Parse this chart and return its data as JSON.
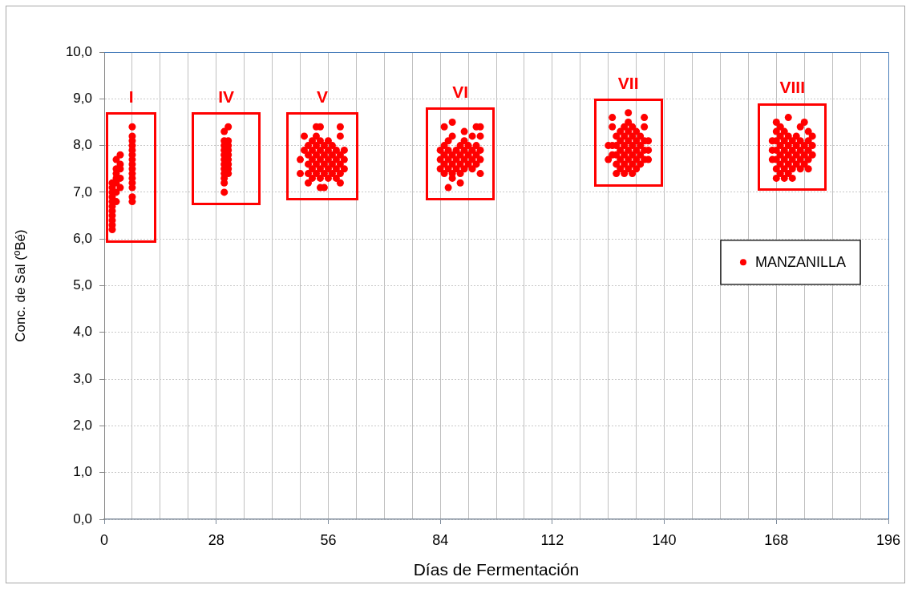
{
  "chart_data": {
    "type": "scatter",
    "xlabel": "Días de Fermentación",
    "ylabel": "Conc. de Sal (ºBé)",
    "xlim": [
      0,
      196
    ],
    "ylim": [
      0,
      10
    ],
    "xticks": [
      0,
      {
        "value": 7,
        "label": null
      },
      {
        "value": 14,
        "label": null
      },
      {
        "value": 21,
        "label": null
      },
      28,
      {
        "value": 35,
        "label": null
      },
      {
        "value": 42,
        "label": null
      },
      {
        "value": 49,
        "label": null
      },
      56,
      {
        "value": 63,
        "label": null
      },
      {
        "value": 70,
        "label": null
      },
      {
        "value": 77,
        "label": null
      },
      84,
      {
        "value": 91,
        "label": null
      },
      {
        "value": 98,
        "label": null
      },
      {
        "value": 105,
        "label": null
      },
      112,
      {
        "value": 119,
        "label": null
      },
      {
        "value": 126,
        "label": null
      },
      {
        "value": 133,
        "label": null
      },
      140,
      {
        "value": 147,
        "label": null
      },
      {
        "value": 154,
        "label": null
      },
      {
        "value": 161,
        "label": null
      },
      168,
      {
        "value": 175,
        "label": null
      },
      {
        "value": 182,
        "label": null
      },
      {
        "value": 189,
        "label": null
      },
      196
    ],
    "yticks": [
      {
        "value": 0,
        "label": "0,0"
      },
      {
        "value": 1,
        "label": "1,0"
      },
      {
        "value": 2,
        "label": "2,0"
      },
      {
        "value": 3,
        "label": "3,0"
      },
      {
        "value": 4,
        "label": "4,0"
      },
      {
        "value": 5,
        "label": "5,0"
      },
      {
        "value": 6,
        "label": "6,0"
      },
      {
        "value": 7,
        "label": "7,0"
      },
      {
        "value": 8,
        "label": "8,0"
      },
      {
        "value": 9,
        "label": "9,0"
      },
      {
        "value": 10,
        "label": "10,0"
      }
    ],
    "grid": true,
    "legend": "right",
    "marker": "circle",
    "annotations": [
      "I",
      "IV",
      "V",
      "VI",
      "VII",
      "VIII"
    ],
    "series": [
      {
        "name": "MANZANILLA",
        "color": "#ff0000",
        "x": [
          2,
          2,
          2,
          2,
          2,
          2,
          2,
          2,
          2,
          2,
          2,
          3,
          3,
          3,
          3,
          3,
          3,
          3,
          4,
          4,
          4,
          4,
          4,
          7,
          7,
          7,
          7,
          7,
          7,
          7,
          7,
          7,
          7,
          7,
          7,
          7,
          7,
          7,
          30,
          30,
          30,
          30,
          30,
          30,
          30,
          30,
          30,
          30,
          30,
          30,
          31,
          31,
          31,
          31,
          31,
          31,
          31,
          31,
          31,
          49,
          49,
          50,
          50,
          51,
          51,
          51,
          51,
          51,
          52,
          52,
          52,
          52,
          52,
          53,
          53,
          53,
          53,
          53,
          53,
          54,
          54,
          54,
          54,
          54,
          54,
          54,
          55,
          55,
          55,
          55,
          55,
          56,
          56,
          56,
          56,
          56,
          57,
          57,
          57,
          57,
          58,
          58,
          58,
          58,
          59,
          59,
          59,
          59,
          59,
          59,
          60,
          60,
          60,
          84,
          84,
          84,
          85,
          85,
          85,
          85,
          85,
          86,
          86,
          86,
          86,
          86,
          87,
          87,
          87,
          87,
          87,
          87,
          88,
          88,
          88,
          89,
          89,
          89,
          89,
          89,
          90,
          90,
          90,
          90,
          90,
          91,
          91,
          91,
          92,
          92,
          92,
          92,
          93,
          93,
          93,
          93,
          94,
          94,
          94,
          94,
          94,
          126,
          126,
          127,
          127,
          127,
          127,
          128,
          128,
          128,
          128,
          128,
          129,
          129,
          129,
          129,
          129,
          130,
          130,
          130,
          130,
          130,
          130,
          131,
          131,
          131,
          131,
          131,
          131,
          131,
          132,
          132,
          132,
          132,
          132,
          132,
          133,
          133,
          133,
          133,
          133,
          134,
          134,
          134,
          134,
          135,
          135,
          135,
          135,
          135,
          136,
          136,
          136,
          167,
          167,
          167,
          168,
          168,
          168,
          168,
          168,
          168,
          168,
          169,
          169,
          169,
          169,
          169,
          169,
          170,
          170,
          170,
          170,
          170,
          170,
          171,
          171,
          171,
          171,
          171,
          171,
          172,
          172,
          172,
          172,
          172,
          173,
          173,
          173,
          173,
          174,
          174,
          174,
          174,
          174,
          175,
          175,
          175,
          175,
          176,
          176,
          176,
          176,
          176,
          177,
          177,
          177
        ],
        "values": [
          6.2,
          6.3,
          6.4,
          6.5,
          6.6,
          6.7,
          6.8,
          6.9,
          7.0,
          7.1,
          7.2,
          6.8,
          7.0,
          7.2,
          7.3,
          7.4,
          7.5,
          7.7,
          7.1,
          7.3,
          7.5,
          7.6,
          7.8,
          6.8,
          6.9,
          7.1,
          7.2,
          7.3,
          7.4,
          7.5,
          7.6,
          7.7,
          7.8,
          7.9,
          8.0,
          8.1,
          8.2,
          8.4,
          7.0,
          7.2,
          7.3,
          7.4,
          7.5,
          7.6,
          7.7,
          7.8,
          7.9,
          8.0,
          8.1,
          8.3,
          7.4,
          7.5,
          7.6,
          7.7,
          7.8,
          7.9,
          8.0,
          8.1,
          8.4,
          7.4,
          7.7,
          7.9,
          8.2,
          7.2,
          7.4,
          7.6,
          7.8,
          8.0,
          7.3,
          7.5,
          7.7,
          7.9,
          8.1,
          7.4,
          7.6,
          7.8,
          8.0,
          8.2,
          8.4,
          7.1,
          7.3,
          7.5,
          7.7,
          7.9,
          8.1,
          8.4,
          7.1,
          7.4,
          7.6,
          7.8,
          8.0,
          7.3,
          7.5,
          7.7,
          7.9,
          8.1,
          7.4,
          7.6,
          7.8,
          8.0,
          7.3,
          7.5,
          7.7,
          7.9,
          7.2,
          7.4,
          7.6,
          7.8,
          8.2,
          8.4,
          7.5,
          7.7,
          7.9,
          7.5,
          7.7,
          7.9,
          7.4,
          7.6,
          7.8,
          8.0,
          8.4,
          7.1,
          7.5,
          7.7,
          7.9,
          8.1,
          7.3,
          7.4,
          7.6,
          7.8,
          8.2,
          8.5,
          7.5,
          7.7,
          7.9,
          7.2,
          7.4,
          7.6,
          7.8,
          8.0,
          7.5,
          7.7,
          7.9,
          8.1,
          8.3,
          7.6,
          7.8,
          8.0,
          7.5,
          7.7,
          7.9,
          8.2,
          7.6,
          7.8,
          8.0,
          8.4,
          7.4,
          7.7,
          7.9,
          8.2,
          8.4,
          7.7,
          8.0,
          7.8,
          8.0,
          8.4,
          8.6,
          7.4,
          7.6,
          7.8,
          8.0,
          8.2,
          7.5,
          7.7,
          7.9,
          8.1,
          8.3,
          7.4,
          7.6,
          7.8,
          8.0,
          8.2,
          8.4,
          7.5,
          7.7,
          7.9,
          8.1,
          8.3,
          8.5,
          8.7,
          7.4,
          7.6,
          7.8,
          8.0,
          8.2,
          8.4,
          7.5,
          7.7,
          7.9,
          8.1,
          8.3,
          7.6,
          7.8,
          8.0,
          8.2,
          7.7,
          7.9,
          8.1,
          8.4,
          8.6,
          7.7,
          7.9,
          8.1,
          7.7,
          7.9,
          8.1,
          7.3,
          7.5,
          7.7,
          7.9,
          8.1,
          8.3,
          8.5,
          7.4,
          7.6,
          7.8,
          8.0,
          8.2,
          8.4,
          7.3,
          7.5,
          7.7,
          7.9,
          8.1,
          8.3,
          7.4,
          7.6,
          7.8,
          8.0,
          8.2,
          8.6,
          7.3,
          7.5,
          7.7,
          7.9,
          8.1,
          7.6,
          7.8,
          8.0,
          8.2,
          7.5,
          7.7,
          7.9,
          8.1,
          8.4,
          7.6,
          7.8,
          8.0,
          8.5,
          7.5,
          7.7,
          7.9,
          8.1,
          8.3,
          7.8,
          8.0,
          8.2
        ]
      }
    ]
  }
}
